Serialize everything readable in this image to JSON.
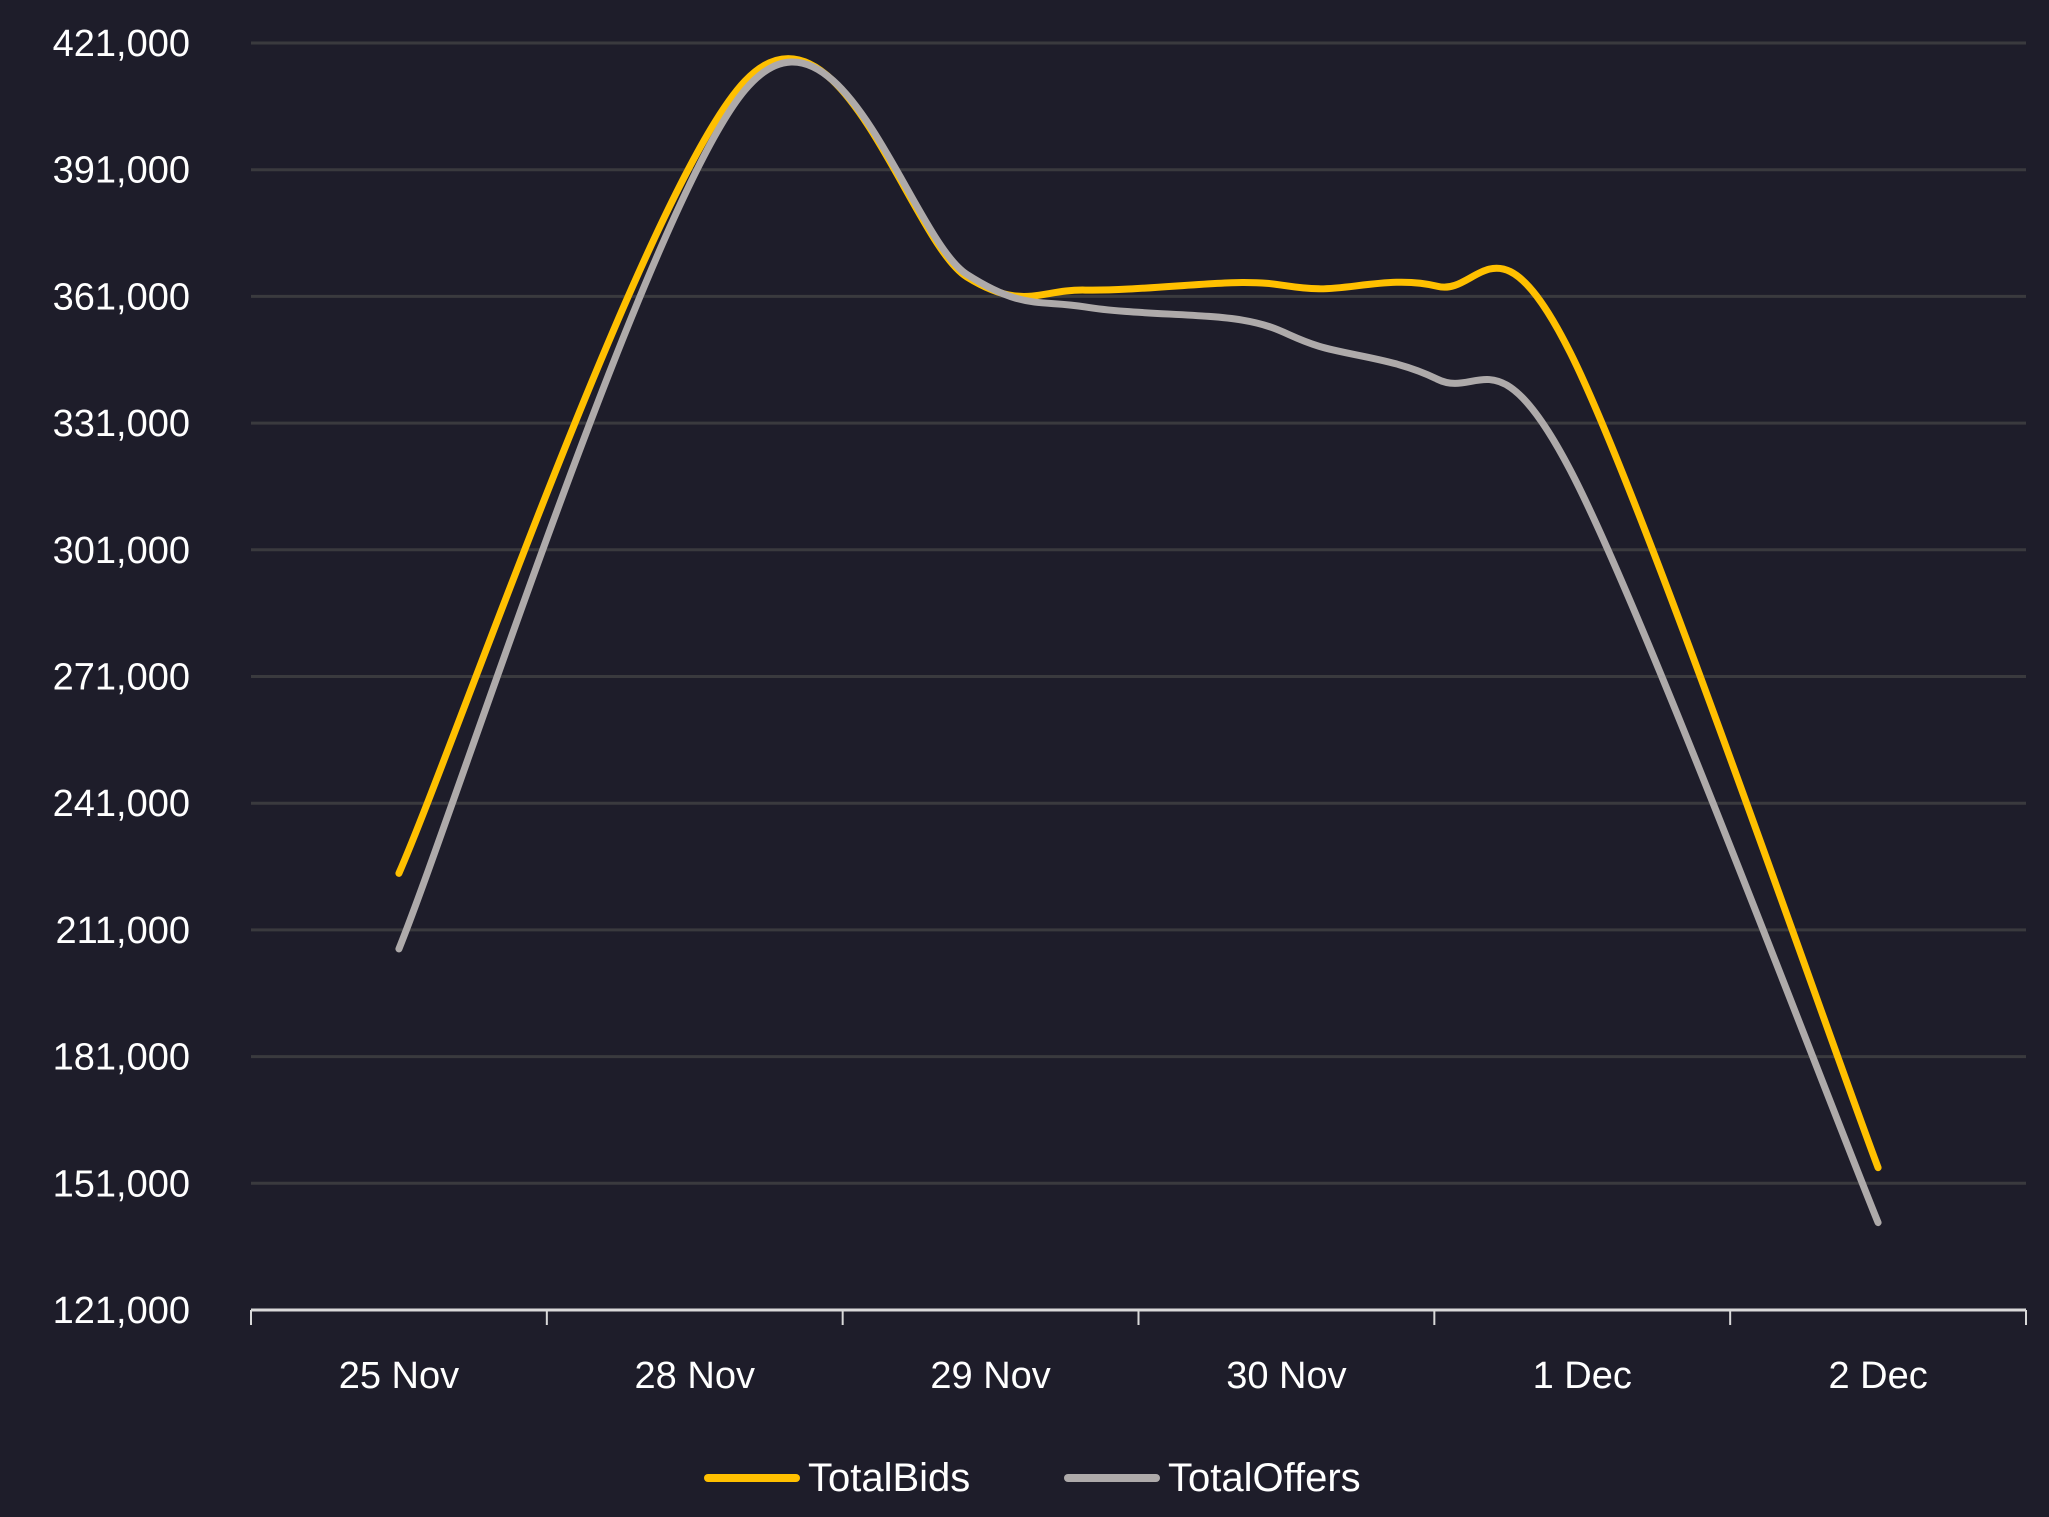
{
  "chart_data": {
    "type": "line",
    "title": "",
    "xlabel": "",
    "ylabel": "",
    "categories": [
      "25 Nov",
      "28 Nov",
      "29 Nov",
      "30 Nov",
      "1 Dec",
      "2 Dec"
    ],
    "yticks": [
      "421,000",
      "391,000",
      "361,000",
      "331,000",
      "301,000",
      "271,000",
      "241,000",
      "211,000",
      "181,000",
      "151,000",
      "121,000"
    ],
    "ylim": [
      121000,
      421000
    ],
    "grid": true,
    "legend_position": "bottom-center",
    "smooth": true,
    "series": [
      {
        "name": "TotalBids",
        "color": "#ffc000",
        "x": [
          0,
          1.17,
          1.92,
          2.32,
          2.85,
          3.11,
          3.51,
          3.96,
          5
        ],
        "values": [
          224400,
          412000,
          365600,
          362500,
          364300,
          362800,
          363400,
          347600,
          154700
        ]
      },
      {
        "name": "TotalOffers",
        "color": "#aeaaaa",
        "x": [
          0,
          1.17,
          1.92,
          2.32,
          2.85,
          3.11,
          3.51,
          3.96,
          5
        ],
        "values": [
          206500,
          409900,
          366200,
          358500,
          355400,
          349200,
          341400,
          319800,
          141700
        ]
      }
    ]
  }
}
